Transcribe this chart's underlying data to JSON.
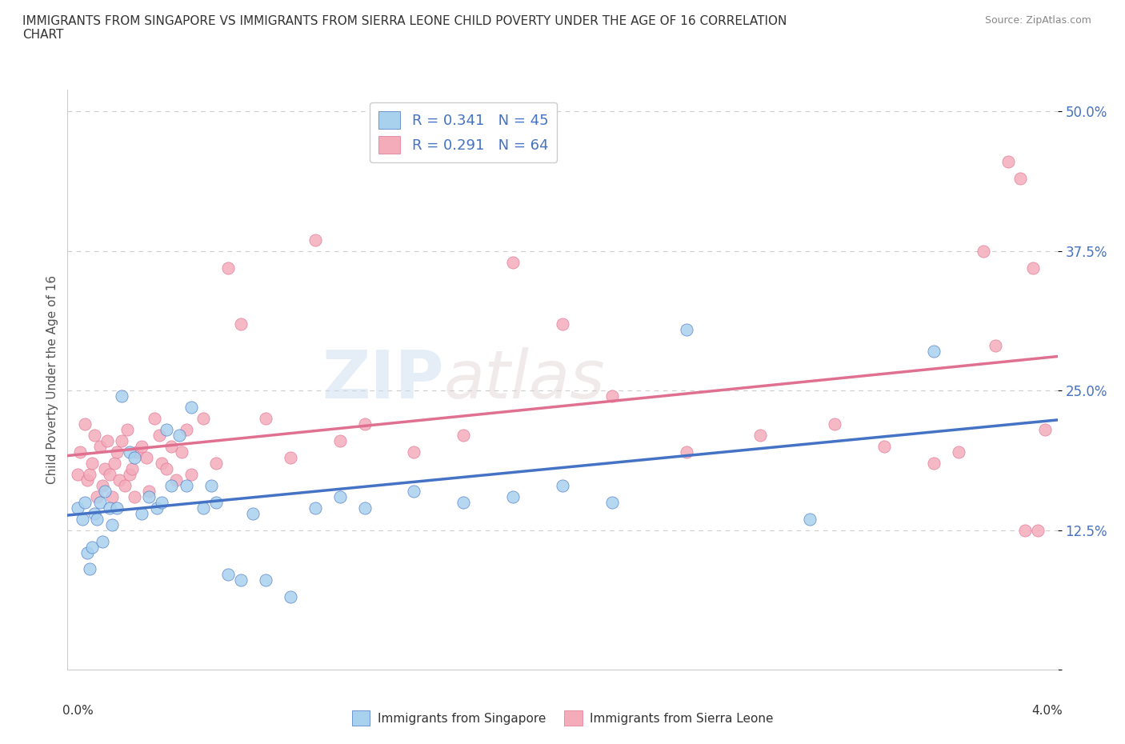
{
  "title": "IMMIGRANTS FROM SINGAPORE VS IMMIGRANTS FROM SIERRA LEONE CHILD POVERTY UNDER THE AGE OF 16 CORRELATION\nCHART",
  "source": "Source: ZipAtlas.com",
  "ylabel": "Child Poverty Under the Age of 16",
  "xlim": [
    0.0,
    4.0
  ],
  "ylim": [
    0.0,
    52.0
  ],
  "yticks": [
    0,
    12.5,
    25.0,
    37.5,
    50.0
  ],
  "ytick_labels": [
    "",
    "12.5%",
    "25.0%",
    "37.5%",
    "50.0%"
  ],
  "singapore_color": "#A8D1EE",
  "singapore_line_color": "#4472C4",
  "sierra_leone_color": "#F4ACBB",
  "sierra_leone_line_color": "#E07090",
  "singapore_r": 0.341,
  "singapore_n": 45,
  "sierra_leone_r": 0.291,
  "sierra_leone_n": 64,
  "legend_label_singapore": "Immigrants from Singapore",
  "legend_label_sierra_leone": "Immigrants from Sierra Leone",
  "watermark_zip": "ZIP",
  "watermark_atlas": "atlas",
  "sg_x": [
    0.04,
    0.06,
    0.07,
    0.08,
    0.09,
    0.1,
    0.11,
    0.12,
    0.13,
    0.14,
    0.15,
    0.17,
    0.18,
    0.2,
    0.22,
    0.25,
    0.27,
    0.3,
    0.33,
    0.36,
    0.38,
    0.4,
    0.42,
    0.45,
    0.48,
    0.5,
    0.55,
    0.58,
    0.6,
    0.65,
    0.7,
    0.75,
    0.8,
    0.9,
    1.0,
    1.1,
    1.2,
    1.4,
    1.6,
    1.8,
    2.0,
    2.2,
    2.5,
    3.0,
    3.5
  ],
  "sg_y": [
    14.5,
    13.5,
    15.0,
    10.5,
    9.0,
    11.0,
    14.0,
    13.5,
    15.0,
    11.5,
    16.0,
    14.5,
    13.0,
    14.5,
    24.5,
    19.5,
    19.0,
    14.0,
    15.5,
    14.5,
    15.0,
    21.5,
    16.5,
    21.0,
    16.5,
    23.5,
    14.5,
    16.5,
    15.0,
    8.5,
    8.0,
    14.0,
    8.0,
    6.5,
    14.5,
    15.5,
    14.5,
    16.0,
    15.0,
    15.5,
    16.5,
    15.0,
    30.5,
    13.5,
    28.5
  ],
  "sl_x": [
    0.04,
    0.05,
    0.07,
    0.08,
    0.09,
    0.1,
    0.11,
    0.12,
    0.13,
    0.14,
    0.15,
    0.16,
    0.17,
    0.18,
    0.19,
    0.2,
    0.21,
    0.22,
    0.23,
    0.24,
    0.25,
    0.26,
    0.27,
    0.28,
    0.3,
    0.32,
    0.33,
    0.35,
    0.37,
    0.38,
    0.4,
    0.42,
    0.44,
    0.46,
    0.48,
    0.5,
    0.55,
    0.6,
    0.65,
    0.7,
    0.8,
    0.9,
    1.0,
    1.1,
    1.2,
    1.4,
    1.6,
    1.8,
    2.0,
    2.2,
    2.5,
    2.8,
    3.1,
    3.3,
    3.5,
    3.6,
    3.7,
    3.75,
    3.8,
    3.85,
    3.87,
    3.9,
    3.92,
    3.95
  ],
  "sl_y": [
    17.5,
    19.5,
    22.0,
    17.0,
    17.5,
    18.5,
    21.0,
    15.5,
    20.0,
    16.5,
    18.0,
    20.5,
    17.5,
    15.5,
    18.5,
    19.5,
    17.0,
    20.5,
    16.5,
    21.5,
    17.5,
    18.0,
    15.5,
    19.5,
    20.0,
    19.0,
    16.0,
    22.5,
    21.0,
    18.5,
    18.0,
    20.0,
    17.0,
    19.5,
    21.5,
    17.5,
    22.5,
    18.5,
    36.0,
    31.0,
    22.5,
    19.0,
    38.5,
    20.5,
    22.0,
    19.5,
    21.0,
    36.5,
    31.0,
    24.5,
    19.5,
    21.0,
    22.0,
    20.0,
    18.5,
    19.5,
    37.5,
    29.0,
    45.5,
    44.0,
    12.5,
    36.0,
    12.5,
    21.5
  ]
}
